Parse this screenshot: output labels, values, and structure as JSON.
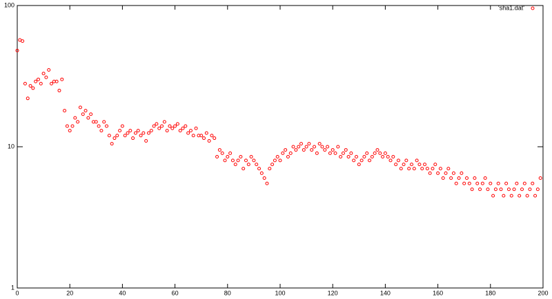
{
  "chart_data": {
    "type": "scatter",
    "log_y": true,
    "xlim": [
      0,
      200
    ],
    "xticks": [
      0,
      20,
      40,
      60,
      80,
      100,
      120,
      140,
      160,
      180,
      200
    ],
    "ylim": [
      1,
      100
    ],
    "yticks": [
      1,
      10,
      100
    ],
    "legend_position": "top-right",
    "x": [
      0,
      1,
      2,
      3,
      4,
      5,
      6,
      7,
      8,
      9,
      10,
      11,
      12,
      13,
      14,
      15,
      16,
      17,
      18,
      19,
      20,
      21,
      22,
      23,
      24,
      25,
      26,
      27,
      28,
      29,
      30,
      31,
      32,
      33,
      34,
      35,
      36,
      37,
      38,
      39,
      40,
      41,
      42,
      43,
      44,
      45,
      46,
      47,
      48,
      49,
      50,
      51,
      52,
      53,
      54,
      55,
      56,
      57,
      58,
      59,
      60,
      61,
      62,
      63,
      64,
      65,
      66,
      67,
      68,
      69,
      70,
      71,
      72,
      73,
      74,
      75,
      76,
      77,
      78,
      79,
      80,
      81,
      82,
      83,
      84,
      85,
      86,
      87,
      88,
      89,
      90,
      91,
      92,
      93,
      94,
      95,
      96,
      97,
      98,
      99,
      100,
      101,
      102,
      103,
      104,
      105,
      106,
      107,
      108,
      109,
      110,
      111,
      112,
      113,
      114,
      115,
      116,
      117,
      118,
      119,
      120,
      121,
      122,
      123,
      124,
      125,
      126,
      127,
      128,
      129,
      130,
      131,
      132,
      133,
      134,
      135,
      136,
      137,
      138,
      139,
      140,
      141,
      142,
      143,
      144,
      145,
      146,
      147,
      148,
      149,
      150,
      151,
      152,
      153,
      154,
      155,
      156,
      157,
      158,
      159,
      160,
      161,
      162,
      163,
      164,
      165,
      166,
      167,
      168,
      169,
      170,
      171,
      172,
      173,
      174,
      175,
      176,
      177,
      178,
      179,
      180,
      181,
      182,
      183,
      184,
      185,
      186,
      187,
      188,
      189,
      190,
      191,
      192,
      193,
      194,
      195,
      196,
      197,
      198,
      199
    ],
    "series": [
      {
        "name": "'sha1.dat'",
        "color": "#ff0000",
        "values": [
          48,
          57,
          56,
          28,
          22,
          27,
          26,
          29,
          30,
          28,
          33,
          31,
          35,
          28,
          29,
          29,
          25,
          30,
          18,
          14,
          13,
          14,
          16,
          15,
          19,
          17,
          18,
          16,
          17,
          15,
          15,
          14,
          13,
          15,
          14,
          12,
          10.5,
          11.5,
          12,
          13,
          14,
          12,
          12.5,
          13,
          11.5,
          12.5,
          13,
          12,
          12.5,
          11,
          12.5,
          13,
          14,
          14.5,
          13.5,
          14,
          15,
          13,
          14,
          13.5,
          14,
          14.5,
          13,
          13.5,
          14,
          12.5,
          13,
          12,
          13.5,
          12,
          12,
          11.5,
          12.5,
          11,
          12,
          11.5,
          8.5,
          9.5,
          9,
          8,
          8.5,
          9,
          8,
          7.5,
          8,
          8.5,
          7,
          8,
          7.5,
          8.5,
          8,
          7.5,
          7,
          6.5,
          6,
          5.5,
          7,
          7.5,
          8,
          8.5,
          8,
          9,
          9.5,
          8.5,
          9,
          10,
          9.5,
          10,
          10.5,
          9.5,
          10,
          10.5,
          9.5,
          10,
          9,
          10.5,
          10,
          9.5,
          10,
          9,
          9.5,
          9,
          10,
          8.5,
          9,
          9.5,
          8.5,
          9,
          8,
          8.5,
          7.5,
          8,
          8.5,
          9,
          8,
          8.5,
          9,
          9.5,
          9,
          8.5,
          9,
          8.5,
          8,
          8.5,
          7.5,
          8,
          7,
          7.5,
          8,
          7,
          7.5,
          7,
          8,
          7.5,
          7,
          7.5,
          7,
          6.5,
          7,
          7.5,
          6.5,
          7,
          6,
          6.5,
          7,
          6,
          6.5,
          5.5,
          6,
          6.5,
          5.5,
          6,
          5.5,
          5,
          6,
          5.5,
          5,
          5.5,
          6,
          5,
          5.5,
          4.5,
          5,
          5.5,
          5,
          4.5,
          5.5,
          5,
          4.5,
          5,
          5.5,
          4.5,
          5,
          5.5,
          4.5,
          5,
          5.5,
          4.5,
          5,
          6
        ]
      }
    ]
  }
}
